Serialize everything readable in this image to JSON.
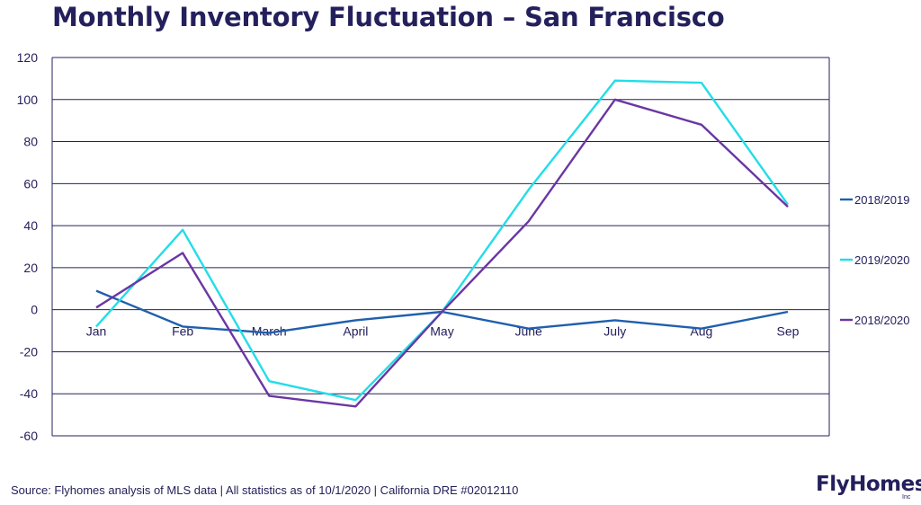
{
  "title": "Monthly Inventory Fluctuation – San Francisco",
  "source": "Source: Flyhomes analysis of MLS data | All statistics as of 10/1/2020 | California DRE #02012110",
  "logo": {
    "text": "FlyHomes",
    "sub": "Inc"
  },
  "chart_data": {
    "type": "line",
    "title": "Monthly Inventory Fluctuation – San Francisco",
    "xlabel": "",
    "ylabel": "",
    "ylim": [
      -60,
      120
    ],
    "yticks": [
      120,
      100,
      80,
      60,
      40,
      20,
      0,
      -20,
      -40,
      -60
    ],
    "grid": true,
    "legend_position": "right",
    "categories": [
      "Jan",
      "Feb",
      "March",
      "April",
      "May",
      "June",
      "July",
      "Aug",
      "Sep"
    ],
    "series": [
      {
        "name": "2018/2019",
        "color": "#1f5fad",
        "values": [
          9,
          -8,
          -11,
          -5,
          -1,
          -9,
          -5,
          -9,
          -1
        ]
      },
      {
        "name": "2019/2020",
        "color": "#22dde8",
        "values": [
          -8,
          38,
          -34,
          -43,
          -1,
          57,
          109,
          108,
          50
        ]
      },
      {
        "name": "2018/2020",
        "color": "#6a36a3",
        "values": [
          1,
          27,
          -41,
          -46,
          -1,
          42,
          100,
          88,
          49
        ]
      }
    ]
  }
}
